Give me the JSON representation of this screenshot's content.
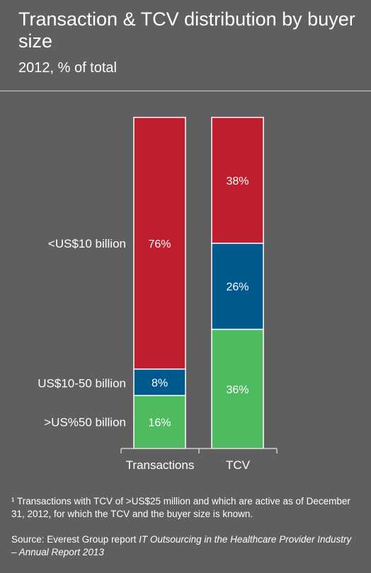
{
  "header": {
    "title": "Transaction & TCV distribution by buyer size",
    "subtitle": "2012, % of total"
  },
  "colors": {
    "background": "#5f5f5f",
    "small_buyer": "#be1e2d",
    "mid_buyer": "#00598c",
    "large_buyer": "#4fba60",
    "axis": "#cfcfcf",
    "text": "#ffffff"
  },
  "chart_data": {
    "type": "bar",
    "stacked": true,
    "percent": true,
    "categories": [
      "Transactions",
      "TCV"
    ],
    "series": [
      {
        "name": ">US%50 billion",
        "values": [
          16,
          36
        ],
        "labels": [
          "16%",
          "36%"
        ]
      },
      {
        "name": "US$10-50 billion",
        "values": [
          8,
          26
        ],
        "labels": [
          "8%",
          "26%"
        ]
      },
      {
        "name": "<US$10 billion",
        "values": [
          76,
          38
        ],
        "labels": [
          "76%",
          "38%"
        ]
      }
    ],
    "ylim": [
      0,
      100
    ]
  },
  "footnote": "¹ Transactions with TCV of >US$25 million and which are active as of December 31, 2012, for which the TCV and the buyer size is known.",
  "source": {
    "prefix": "Source: Everest Group report ",
    "report": "IT Outsourcing in the Healthcare Provider Industry – Annual Report 2013"
  }
}
